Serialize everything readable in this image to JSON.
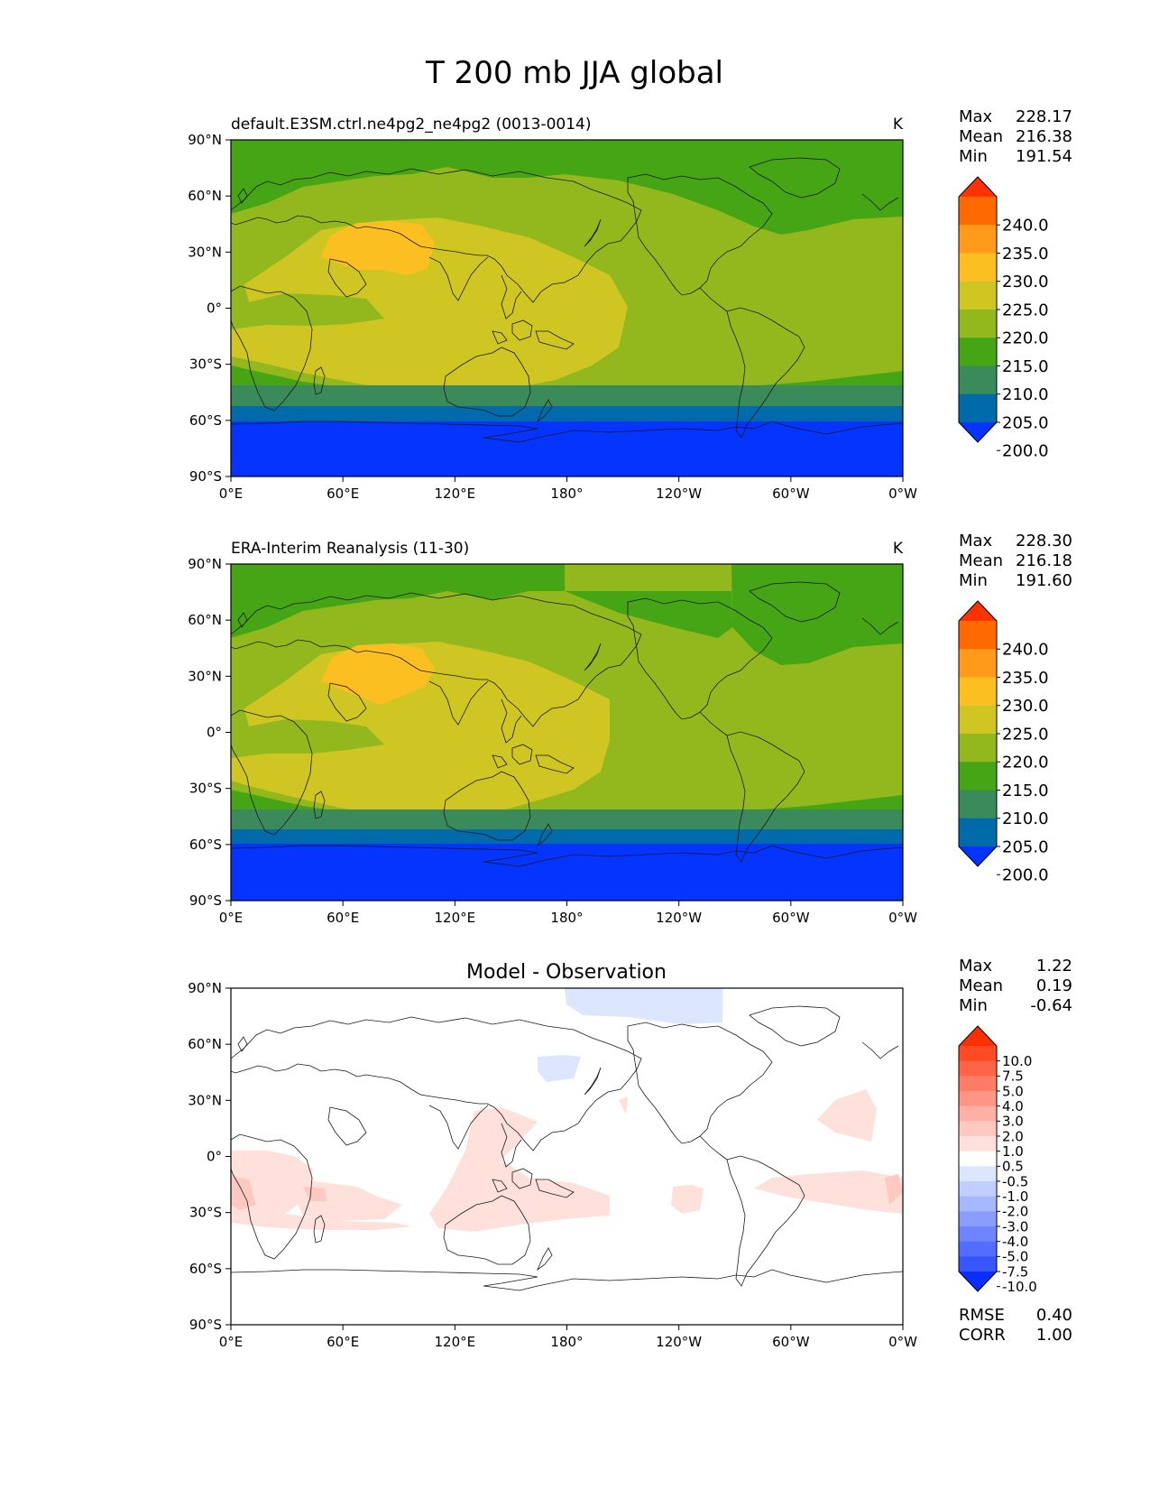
{
  "figure": {
    "title": "T 200 mb JJA global"
  },
  "axis_ticks": {
    "lat": [
      "90°N",
      "60°N",
      "30°N",
      "0°",
      "30°S",
      "60°S",
      "90°S"
    ],
    "lon": [
      "0°E",
      "60°E",
      "120°E",
      "180°",
      "120°W",
      "60°W",
      "0°W"
    ]
  },
  "panels": [
    {
      "title_left": "default.E3SM.ctrl.ne4pg2_ne4pg2 (0013-0014)",
      "title_center": "",
      "units": "K",
      "stats": [
        {
          "label": "Max",
          "value": "228.17"
        },
        {
          "label": "Mean",
          "value": "216.38"
        },
        {
          "label": "Min",
          "value": "191.54"
        }
      ],
      "colorbar": {
        "labels": [
          "240.0",
          "235.0",
          "230.0",
          "225.0",
          "220.0",
          "215.0",
          "210.0",
          "205.0",
          "200.0"
        ],
        "colors": [
          "#ff3300",
          "#ff6a00",
          "#ff9a1a",
          "#fcbf22",
          "#d0c623",
          "#93b81e",
          "#46a514",
          "#3a8a5c",
          "#006aaa",
          "#0533ff"
        ]
      }
    },
    {
      "title_left": "ERA-Interim Reanalysis (11-30)",
      "title_center": "",
      "units": "K",
      "stats": [
        {
          "label": "Max",
          "value": "228.30"
        },
        {
          "label": "Mean",
          "value": "216.18"
        },
        {
          "label": "Min",
          "value": "191.60"
        }
      ],
      "colorbar": {
        "labels": [
          "240.0",
          "235.0",
          "230.0",
          "225.0",
          "220.0",
          "215.0",
          "210.0",
          "205.0",
          "200.0"
        ],
        "colors": [
          "#ff3300",
          "#ff6a00",
          "#ff9a1a",
          "#fcbf22",
          "#d0c623",
          "#93b81e",
          "#46a514",
          "#3a8a5c",
          "#006aaa",
          "#0533ff"
        ]
      }
    },
    {
      "title_left": "",
      "title_center": "Model - Observation",
      "units": "",
      "stats": [
        {
          "label": "Max",
          "value": "1.22"
        },
        {
          "label": "Mean",
          "value": "0.19"
        },
        {
          "label": "Min",
          "value": "-0.64"
        }
      ],
      "extra_stats": [
        {
          "label": "RMSE",
          "value": "0.40"
        },
        {
          "label": "CORR",
          "value": "1.00"
        }
      ],
      "colorbar": {
        "labels": [
          "10.0",
          "7.5",
          "5.0",
          "4.0",
          "3.0",
          "2.0",
          "1.0",
          "0.5",
          "-0.5",
          "-1.0",
          "-2.0",
          "-3.0",
          "-4.0",
          "-5.0",
          "-7.5",
          "-10.0"
        ],
        "colors": [
          "#ff3000",
          "#ff4a26",
          "#ff6447",
          "#ff7d66",
          "#ff9685",
          "#ffafa3",
          "#ffc8c0",
          "#ffe0db",
          "#ffffff",
          "#dde6ff",
          "#c2ceff",
          "#a6b6ff",
          "#8a9dff",
          "#6f85ff",
          "#536dff",
          "#3855ff",
          "#0a2eff"
        ]
      }
    }
  ]
}
